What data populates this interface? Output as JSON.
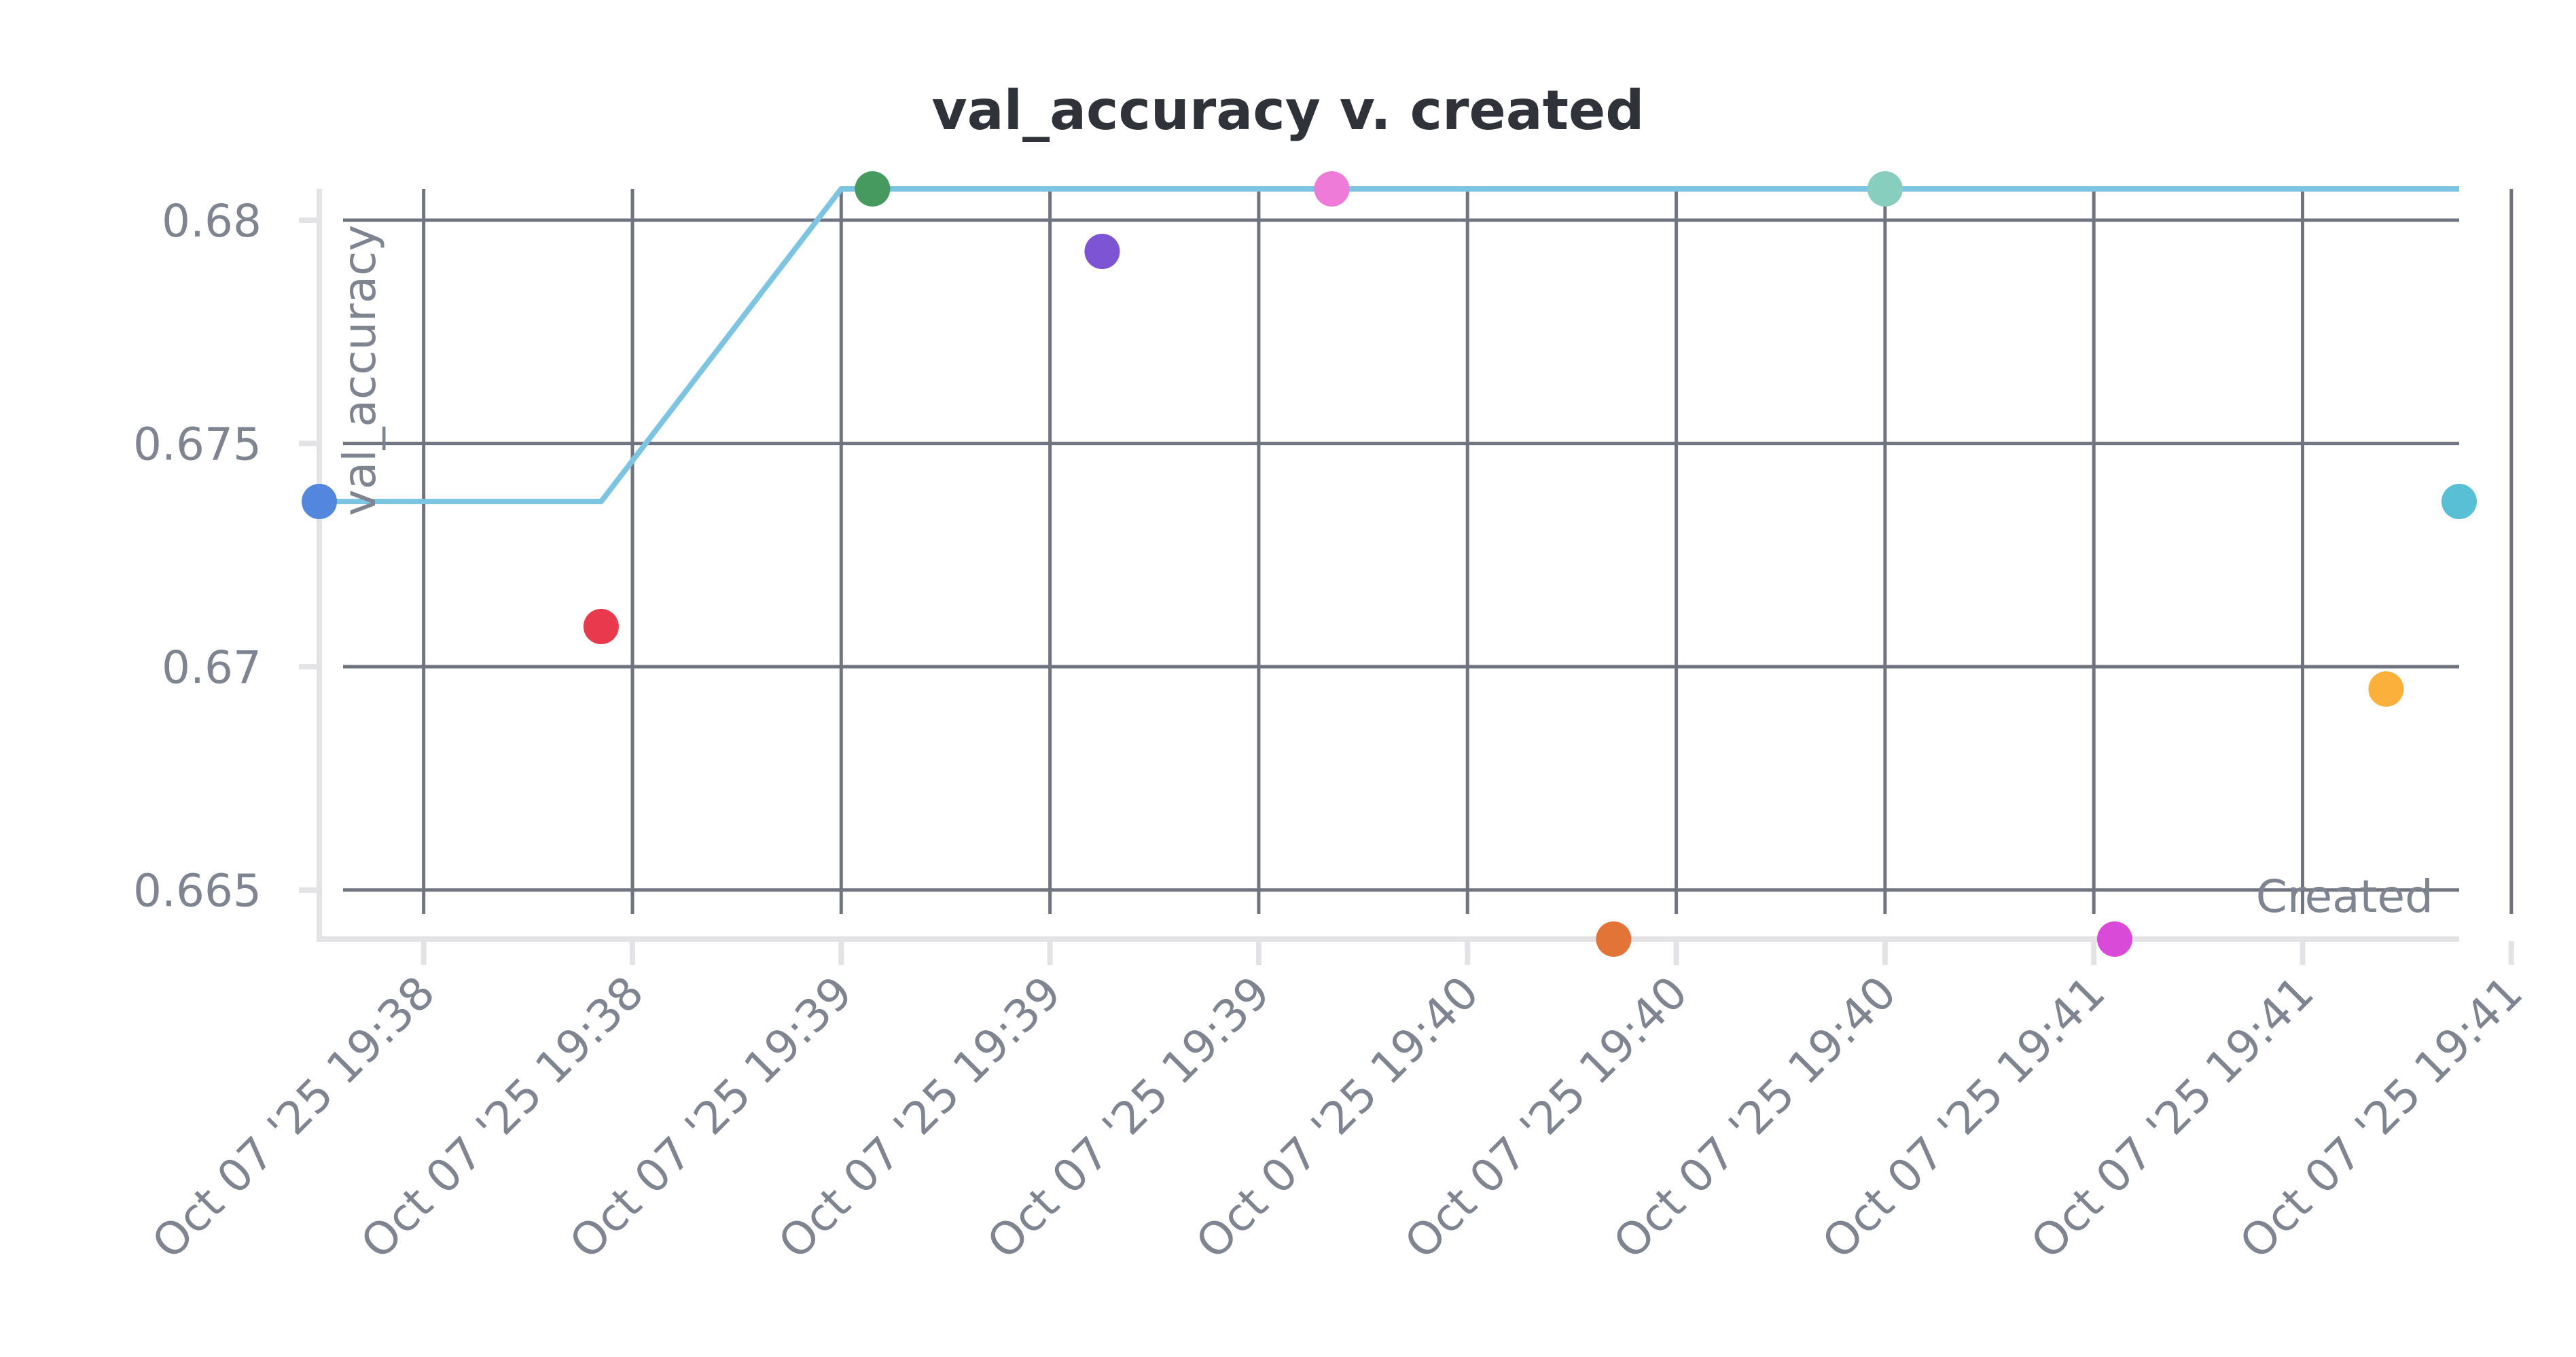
{
  "chart_data": {
    "type": "scatter",
    "title": "val_accuracy v. created",
    "xlabel": "Created",
    "ylabel": "val_accuracy",
    "x_type": "time",
    "xlim": [
      "2025-10-07T19:38:20",
      "2025-10-07T19:41:45"
    ],
    "ylim": [
      0.6639,
      0.6807
    ],
    "y_ticks": [
      0.665,
      0.67,
      0.675,
      0.68
    ],
    "y_tick_labels": [
      "0.665",
      "0.67",
      "0.675",
      "0.68"
    ],
    "x_ticks": [
      "2025-10-07T19:38:30",
      "2025-10-07T19:38:50",
      "2025-10-07T19:39:10",
      "2025-10-07T19:39:30",
      "2025-10-07T19:39:50",
      "2025-10-07T19:40:10",
      "2025-10-07T19:40:30",
      "2025-10-07T19:40:50",
      "2025-10-07T19:41:10",
      "2025-10-07T19:41:30",
      "2025-10-07T19:41:50"
    ],
    "x_tick_labels": [
      "Oct 07 '25 19:38",
      "Oct 07 '25 19:38",
      "Oct 07 '25 19:39",
      "Oct 07 '25 19:39",
      "Oct 07 '25 19:39",
      "Oct 07 '25 19:40",
      "Oct 07 '25 19:40",
      "Oct 07 '25 19:40",
      "Oct 07 '25 19:41",
      "Oct 07 '25 19:41",
      "Oct 07 '25 19:41"
    ],
    "grid": true,
    "points": [
      {
        "x": "2025-10-07T19:38:20",
        "y": 0.6737,
        "color": "#5387dd"
      },
      {
        "x": "2025-10-07T19:38:47",
        "y": 0.6709,
        "color": "#e8394d"
      },
      {
        "x": "2025-10-07T19:39:13",
        "y": 0.6807,
        "color": "#479a5f"
      },
      {
        "x": "2025-10-07T19:39:35",
        "y": 0.6793,
        "color": "#7d54d3"
      },
      {
        "x": "2025-10-07T19:39:57",
        "y": 0.6807,
        "color": "#ef7bd9"
      },
      {
        "x": "2025-10-07T19:40:24",
        "y": 0.6639,
        "color": "#e27438"
      },
      {
        "x": "2025-10-07T19:40:50",
        "y": 0.6807,
        "color": "#87cebf"
      },
      {
        "x": "2025-10-07T19:41:12",
        "y": 0.6639,
        "color": "#da4ad9"
      },
      {
        "x": "2025-10-07T19:41:38",
        "y": 0.6695,
        "color": "#fbb03b"
      },
      {
        "x": "2025-10-07T19:41:45",
        "y": 0.6737,
        "color": "#58bfd4"
      }
    ],
    "best_line": {
      "color": "#7cc4e2",
      "points": [
        {
          "x": "2025-10-07T19:38:20",
          "y": 0.6737
        },
        {
          "x": "2025-10-07T19:38:47",
          "y": 0.6737
        },
        {
          "x": "2025-10-07T19:39:10",
          "y": 0.6807
        },
        {
          "x": "2025-10-07T19:41:45",
          "y": 0.6807
        }
      ]
    }
  }
}
